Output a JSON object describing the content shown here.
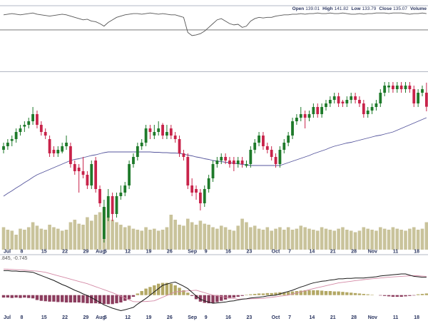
{
  "chart_data": [
    {
      "type": "candlestick",
      "header_labels": [
        "Open",
        "High",
        "Low",
        "Close",
        "Volume"
      ],
      "up_color": "#1e7a2a",
      "down_color": "#c8234a",
      "volume_color": "#c9c39b",
      "ylim": [
        95,
        145
      ],
      "vlim": [
        0,
        100
      ],
      "categories": [
        "Jul",
        null,
        null,
        null,
        "8",
        null,
        null,
        null,
        null,
        "15",
        null,
        null,
        null,
        null,
        "22",
        null,
        null,
        null,
        null,
        "29",
        null,
        null,
        "Aug",
        null,
        "5",
        null,
        null,
        null,
        null,
        "12",
        null,
        null,
        null,
        null,
        "19",
        null,
        null,
        null,
        null,
        "26",
        null,
        null,
        null,
        null,
        "Sep",
        null,
        null,
        null,
        "9",
        null,
        null,
        null,
        null,
        "16",
        null,
        null,
        null,
        null,
        "23",
        null,
        null,
        null,
        null,
        null,
        "Oct",
        null,
        null,
        null,
        "7",
        null,
        null,
        null,
        null,
        "14",
        null,
        null,
        null,
        null,
        "21",
        null,
        null,
        null,
        null,
        "28",
        null,
        null,
        null,
        "Nov",
        null,
        null,
        null,
        null,
        null,
        "11",
        null,
        null,
        null,
        null,
        "18",
        null,
        null,
        null
      ],
      "candles": [
        [
          123,
          125,
          122,
          124
        ],
        [
          124,
          126,
          123,
          125
        ],
        [
          125.5,
          127,
          124,
          126
        ],
        [
          126,
          129,
          125,
          128
        ],
        [
          128,
          130,
          127,
          129
        ],
        [
          129.5,
          131,
          128,
          130
        ],
        [
          130,
          132,
          129,
          131
        ],
        [
          131,
          135,
          130,
          133
        ],
        [
          133,
          134,
          129,
          130
        ],
        [
          130,
          131,
          127,
          128
        ],
        [
          128,
          129,
          126,
          127
        ],
        [
          126,
          127,
          121,
          122
        ],
        [
          123,
          124,
          121,
          122
        ],
        [
          122,
          124,
          121,
          123
        ],
        [
          122.5,
          125,
          122,
          124
        ],
        [
          124,
          127,
          123,
          125
        ],
        [
          124,
          125,
          118,
          119
        ],
        [
          119,
          120,
          116,
          117
        ],
        [
          118,
          119,
          111,
          117
        ],
        [
          117,
          121,
          115,
          116
        ],
        [
          116,
          117,
          112,
          113
        ],
        [
          113,
          120,
          112,
          119
        ],
        [
          120,
          121,
          111,
          112
        ],
        [
          112,
          113,
          107,
          108
        ],
        [
          98,
          109,
          97,
          107
        ],
        [
          104,
          112,
          103,
          110
        ],
        [
          110,
          111,
          103,
          105
        ],
        [
          105,
          111,
          104,
          110
        ],
        [
          110,
          113,
          109,
          111
        ],
        [
          111,
          114,
          110,
          113
        ],
        [
          113,
          120,
          112,
          119
        ],
        [
          119,
          122,
          118,
          121
        ],
        [
          121,
          125,
          120,
          124
        ],
        [
          124,
          126,
          123,
          125
        ],
        [
          125,
          130,
          124,
          129
        ],
        [
          129,
          130,
          126,
          128
        ],
        [
          127,
          130,
          126,
          128
        ],
        [
          128,
          131,
          127,
          129
        ],
        [
          130,
          130.5,
          126,
          127
        ],
        [
          127,
          130,
          126,
          128
        ],
        [
          129,
          130,
          126,
          127
        ],
        [
          127,
          128,
          125,
          126
        ],
        [
          126,
          127,
          121,
          122
        ],
        [
          122,
          123,
          120,
          121
        ],
        [
          121,
          122,
          112,
          113
        ],
        [
          113,
          115,
          110,
          111
        ],
        [
          112,
          113,
          109,
          111
        ],
        [
          111,
          112,
          106,
          108
        ],
        [
          108,
          113,
          107,
          112
        ],
        [
          112,
          116,
          111,
          115
        ],
        [
          115,
          120,
          114,
          119
        ],
        [
          119,
          121,
          118,
          120
        ],
        [
          120,
          122,
          119,
          121
        ],
        [
          121,
          122,
          119,
          120
        ],
        [
          120,
          121,
          118,
          119
        ],
        [
          120,
          121,
          117,
          119
        ],
        [
          119,
          121,
          118,
          120
        ],
        [
          120,
          121,
          118,
          119
        ],
        [
          118.5,
          120,
          118,
          119
        ],
        [
          119,
          124,
          118,
          123
        ],
        [
          123,
          126,
          122,
          125
        ],
        [
          125,
          128,
          124,
          127
        ],
        [
          127,
          128,
          123,
          124
        ],
        [
          124,
          125,
          122,
          123
        ],
        [
          123,
          124,
          120,
          121
        ],
        [
          121,
          122,
          118,
          119
        ],
        [
          119,
          124,
          118,
          123
        ],
        [
          123,
          126,
          122,
          125
        ],
        [
          125,
          128,
          124,
          127
        ],
        [
          127,
          132,
          126,
          131
        ],
        [
          131,
          133,
          130,
          132
        ],
        [
          132,
          135,
          131,
          133
        ],
        [
          133,
          134,
          129,
          132
        ],
        [
          132,
          134,
          131,
          133
        ],
        [
          133,
          136,
          132,
          135
        ],
        [
          135,
          136,
          132,
          133
        ],
        [
          133,
          136,
          132,
          135
        ],
        [
          135,
          137,
          134,
          136
        ],
        [
          136,
          138,
          135,
          137
        ],
        [
          137,
          139,
          136,
          138
        ],
        [
          138,
          139,
          135,
          136
        ],
        [
          136.5,
          137,
          135,
          136
        ],
        [
          136,
          138,
          135,
          137
        ],
        [
          137,
          139,
          136,
          138
        ],
        [
          138,
          139,
          136,
          137
        ],
        [
          137,
          138,
          135,
          136
        ],
        [
          136,
          137,
          132,
          133
        ],
        [
          133,
          135,
          132,
          134
        ],
        [
          134,
          136,
          133,
          135
        ],
        [
          135,
          137,
          134,
          136
        ],
        [
          136,
          140,
          135,
          139
        ],
        [
          139,
          142,
          138,
          141
        ],
        [
          140.5,
          142,
          139,
          141
        ],
        [
          141,
          142,
          139,
          140
        ],
        [
          140,
          142,
          139,
          141
        ],
        [
          141,
          142,
          139,
          140
        ],
        [
          140,
          142,
          139,
          141
        ],
        [
          141,
          142,
          139,
          140
        ],
        [
          140,
          141,
          135,
          136
        ],
        [
          136,
          140,
          135,
          139
        ],
        [
          139,
          141,
          138,
          140
        ],
        [
          139.01,
          141.82,
          133.79,
          135.07
        ]
      ],
      "volume": [
        45,
        40,
        38,
        30,
        42,
        40,
        45,
        55,
        48,
        42,
        40,
        50,
        45,
        42,
        38,
        40,
        55,
        60,
        52,
        50,
        65,
        58,
        70,
        75,
        85,
        65,
        60,
        55,
        50,
        45,
        48,
        42,
        40,
        38,
        45,
        40,
        42,
        38,
        40,
        45,
        70,
        60,
        50,
        48,
        62,
        55,
        50,
        58,
        52,
        50,
        45,
        42,
        48,
        45,
        40,
        38,
        48,
        62,
        55,
        45,
        48,
        42,
        40,
        45,
        38,
        42,
        45,
        40,
        45,
        40,
        42,
        48,
        45,
        42,
        40,
        38,
        45,
        42,
        40,
        38,
        42,
        45,
        40,
        38,
        35,
        38,
        45,
        42,
        40,
        38,
        45,
        42,
        40,
        45,
        42,
        40,
        38,
        42,
        45,
        40,
        42,
        55
      ],
      "ma": {
        "color": "#55559c",
        "values": [
          110,
          110.8,
          111.5,
          112.3,
          113,
          113.8,
          114.5,
          115.3,
          116,
          116.5,
          117,
          117.5,
          118,
          118.5,
          119,
          119.5,
          120,
          120.3,
          120.5,
          120.8,
          121.1,
          121.4,
          121.6,
          121.9,
          122.2,
          122.4,
          122.4,
          122.4,
          122.4,
          122.4,
          122.4,
          122.4,
          122.4,
          122.4,
          122.4,
          122.4,
          122.3,
          122.3,
          122.2,
          122.2,
          122.1,
          122.1,
          122,
          121.8,
          121.5,
          121.3,
          121,
          120.8,
          120.5,
          120.3,
          120,
          119.8,
          119.7,
          119.5,
          119.4,
          119.2,
          119.1,
          118.9,
          118.8,
          118.6,
          118.6,
          118.6,
          118.6,
          118.6,
          118.6,
          118.6,
          118.6,
          119,
          119.4,
          119.8,
          120.2,
          120.6,
          121,
          121.4,
          121.9,
          122.3,
          122.7,
          123.1,
          123.6,
          124,
          124.3,
          124.6,
          124.9,
          125.1,
          125.4,
          125.7,
          126,
          126.3,
          126.6,
          126.9,
          127.1,
          127.4,
          127.7,
          128,
          128.5,
          129,
          129.5,
          130,
          130.5,
          131,
          131.5,
          132
        ]
      }
    },
    {
      "type": "macd",
      "label": ".845, -0.745",
      "ylim": [
        -3,
        4
      ],
      "macd": {
        "color": "#1a1a1a",
        "values": [
          3.0,
          3.0,
          2.95,
          2.95,
          2.9,
          2.9,
          2.85,
          2.8,
          2.6,
          2.4,
          2.2,
          2.0,
          1.8,
          1.55,
          1.3,
          1.1,
          0.85,
          0.6,
          0.4,
          0.15,
          -0.05,
          -0.3,
          -0.6,
          -0.9,
          -1.2,
          -1.4,
          -1.6,
          -1.75,
          -1.9,
          -1.8,
          -1.65,
          -1.5,
          -1.1,
          -0.75,
          -0.4,
          0,
          0.4,
          0.8,
          1.2,
          1.35,
          1.5,
          1.6,
          1.35,
          1.1,
          0.8,
          0.35,
          -0.1,
          -0.5,
          -0.7,
          -0.85,
          -1.0,
          -0.95,
          -0.9,
          -0.85,
          -0.75,
          -0.7,
          -0.6,
          -0.5,
          -0.45,
          -0.35,
          -0.3,
          -0.25,
          -0.2,
          -0.1,
          -0.05,
          0,
          0.15,
          0.3,
          0.45,
          0.6,
          0.8,
          1.0,
          1.15,
          1.35,
          1.5,
          1.6,
          1.7,
          1.75,
          1.85,
          1.9,
          2.0,
          2.0,
          2.05,
          2.05,
          2.1,
          2.1,
          2.1,
          2.15,
          2.2,
          2.25,
          2.35,
          2.4,
          2.45,
          2.5,
          2.55,
          2.6,
          2.6,
          2.45,
          2.3,
          2.25,
          2.2,
          2.2
        ]
      },
      "signal": {
        "color": "#d48aa6",
        "values": [
          3.2,
          3.18,
          3.15,
          3.12,
          3.1,
          3.06,
          3.02,
          2.98,
          2.94,
          2.88,
          2.8,
          2.66,
          2.52,
          2.38,
          2.24,
          2.1,
          1.96,
          1.82,
          1.68,
          1.54,
          1.4,
          1.22,
          1.03,
          0.85,
          0.67,
          0.48,
          0.3,
          0.08,
          -0.14,
          -0.36,
          -0.58,
          -0.8,
          -0.82,
          -0.8,
          -0.78,
          -0.74,
          -0.7,
          -0.48,
          -0.26,
          -0.04,
          0.18,
          0.4,
          0.44,
          0.48,
          0.52,
          0.56,
          0.6,
          0.45,
          0.3,
          0.15,
          0,
          -0.08,
          -0.17,
          -0.25,
          -0.33,
          -0.42,
          -0.5,
          -0.48,
          -0.47,
          -0.45,
          -0.43,
          -0.42,
          -0.4,
          -0.33,
          -0.27,
          -0.2,
          -0.13,
          -0.07,
          0,
          0.13,
          0.27,
          0.4,
          0.53,
          0.67,
          0.8,
          0.92,
          1.03,
          1.15,
          1.27,
          1.38,
          1.5,
          1.57,
          1.63,
          1.7,
          1.77,
          1.83,
          1.9,
          1.95,
          2.0,
          2.05,
          2.1,
          2.15,
          2.2,
          2.23,
          2.27,
          2.3,
          2.33,
          2.37,
          2.4,
          2.37,
          2.33,
          2.3
        ]
      },
      "histogram": {
        "pos_color": "#b3a865",
        "neg_color": "#8c3d5e",
        "values": [
          -0.3,
          -0.3,
          -0.35,
          -0.3,
          -0.35,
          -0.3,
          -0.35,
          -0.4,
          -0.6,
          -0.7,
          -0.75,
          -0.8,
          -0.8,
          -0.85,
          -0.85,
          -0.9,
          -0.9,
          -0.9,
          -0.9,
          -0.95,
          -1.0,
          -1.0,
          -1.0,
          -1.05,
          -1.1,
          -1.1,
          -1.1,
          -1.0,
          -0.9,
          -0.7,
          -0.5,
          -0.2,
          0.2,
          0.5,
          0.8,
          1.0,
          1.2,
          1.4,
          1.5,
          1.5,
          1.4,
          1.2,
          0.9,
          0.6,
          0.3,
          -0.1,
          -0.5,
          -0.8,
          -0.95,
          -1.0,
          -0.95,
          -0.85,
          -0.7,
          -0.55,
          -0.4,
          -0.3,
          -0.2,
          -0.1,
          0.05,
          0.1,
          0.15,
          0.2,
          0.2,
          0.25,
          0.25,
          0.3,
          0.35,
          0.35,
          0.4,
          0.45,
          0.5,
          0.55,
          0.6,
          0.6,
          0.6,
          0.6,
          0.55,
          0.5,
          0.5,
          0.45,
          0.45,
          0.4,
          0.35,
          0.3,
          0.25,
          0.2,
          0.15,
          0.1,
          0.05,
          0,
          -0.05,
          -0.1,
          -0.15,
          -0.2,
          -0.2,
          -0.2,
          -0.15,
          -0.1,
          -0.05,
          0.1,
          0.15,
          0.2
        ]
      }
    },
    {
      "type": "line",
      "ylim": [
        0,
        100
      ],
      "hline": 66,
      "color": "#555555",
      "values": [
        90,
        91,
        92,
        91,
        90,
        91,
        92,
        93,
        91,
        90,
        89,
        88,
        89,
        90,
        91,
        90,
        88,
        86,
        84,
        82,
        83,
        80,
        79,
        76,
        72,
        78,
        82,
        86,
        88,
        90,
        91,
        92,
        92,
        91,
        92,
        93,
        92,
        91,
        92,
        91,
        90,
        90,
        88,
        86,
        62,
        57,
        58,
        60,
        64,
        70,
        76,
        82,
        84,
        80,
        76,
        74,
        75,
        70,
        72,
        80,
        84,
        86,
        85,
        86,
        86,
        88,
        89,
        90,
        90,
        91,
        91,
        92,
        91,
        92,
        92,
        93,
        92,
        92,
        93,
        92,
        92,
        93,
        92,
        91,
        91,
        92,
        91,
        92,
        92,
        93,
        93,
        93,
        92,
        93,
        93,
        93,
        92,
        91,
        92,
        92,
        93,
        92
      ]
    }
  ]
}
